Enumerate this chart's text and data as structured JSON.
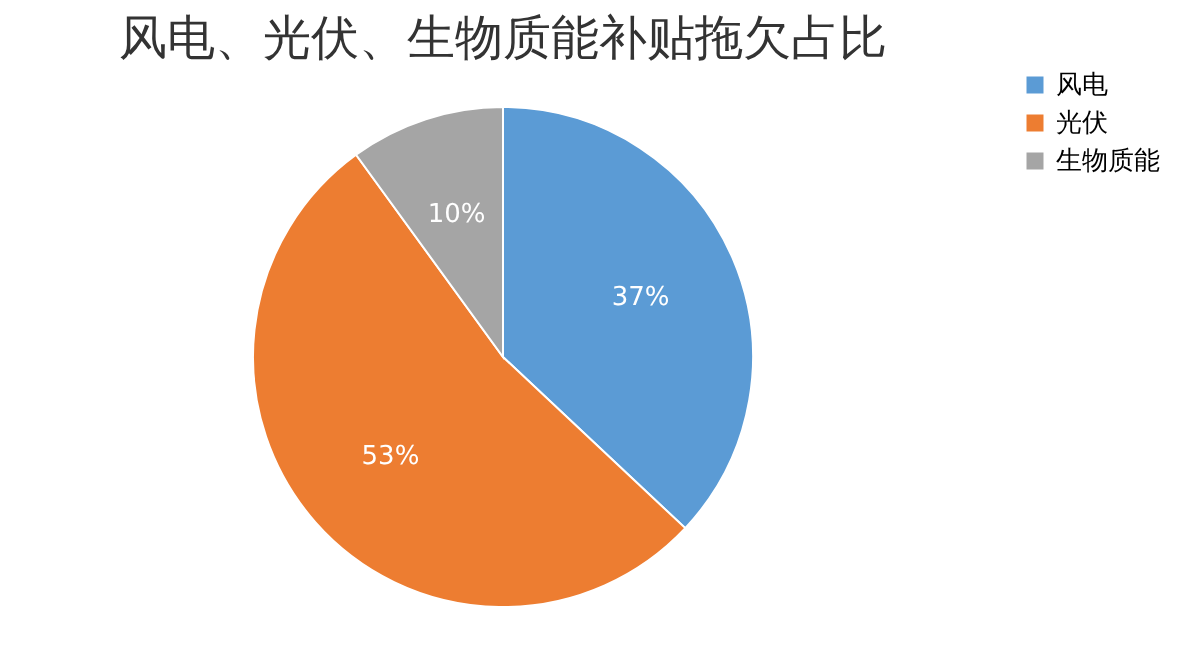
{
  "chart_data": {
    "type": "pie",
    "title": "风电、光伏、生物质能补贴拖欠占比",
    "categories": [
      "风电",
      "光伏",
      "生物质能"
    ],
    "values": [
      37,
      53,
      10
    ],
    "colors": [
      "#5b9bd5",
      "#ed7d31",
      "#a5a5a5"
    ],
    "value_labels": [
      "37%",
      "53%",
      "10%"
    ],
    "legend": "right"
  }
}
